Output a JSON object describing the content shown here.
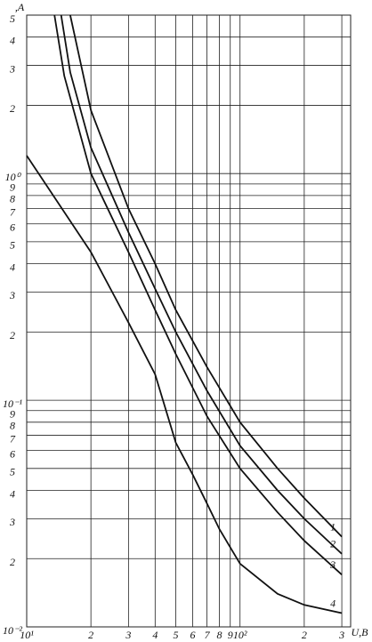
{
  "chart_data": {
    "type": "line",
    "xlabel": "U,B",
    "ylabel": ",A",
    "log_x": true,
    "log_y": true,
    "grid": true,
    "xlim": [
      10,
      330
    ],
    "ylim": [
      0.01,
      5
    ],
    "xticks": [
      {
        "value": 10,
        "label": "10¹"
      },
      {
        "value": 20,
        "label": "2"
      },
      {
        "value": 30,
        "label": "3"
      },
      {
        "value": 40,
        "label": "4"
      },
      {
        "value": 50,
        "label": "5"
      },
      {
        "value": 60,
        "label": "6"
      },
      {
        "value": 70,
        "label": "7"
      },
      {
        "value": 80,
        "label": "8"
      },
      {
        "value": 90,
        "label": "9"
      },
      {
        "value": 100,
        "label": "10²"
      },
      {
        "value": 200,
        "label": "2"
      },
      {
        "value": 300,
        "label": "3"
      }
    ],
    "yticks": [
      5,
      4,
      3,
      2,
      {
        "value": 1,
        "label": "10⁰"
      },
      {
        "value": 0.9,
        "label": "9"
      },
      {
        "value": 0.8,
        "label": "8"
      },
      {
        "value": 0.7,
        "label": "7"
      },
      {
        "value": 0.6,
        "label": "6"
      },
      {
        "value": 0.5,
        "label": "5"
      },
      {
        "value": 0.4,
        "label": "4"
      },
      {
        "value": 0.3,
        "label": "3"
      },
      {
        "value": 0.2,
        "label": "2"
      },
      {
        "value": 0.1,
        "label": "10⁻¹"
      },
      {
        "value": 0.09,
        "label": "9"
      },
      {
        "value": 0.08,
        "label": "8"
      },
      {
        "value": 0.07,
        "label": "7"
      },
      {
        "value": 0.06,
        "label": "6"
      },
      {
        "value": 0.05,
        "label": "5"
      },
      {
        "value": 0.04,
        "label": "4"
      },
      {
        "value": 0.03,
        "label": "3"
      },
      {
        "value": 0.02,
        "label": "2"
      },
      {
        "value": 0.01,
        "label": "10⁻²"
      }
    ],
    "series": [
      {
        "name": "1",
        "color": "#111111",
        "x": [
          16,
          18,
          20,
          30,
          40,
          50,
          70,
          100,
          150,
          200,
          300
        ],
        "values": [
          5,
          3,
          1.9,
          0.7,
          0.4,
          0.25,
          0.14,
          0.08,
          0.05,
          0.037,
          0.025
        ]
      },
      {
        "name": "2",
        "color": "#111111",
        "x": [
          14.5,
          16,
          20,
          30,
          40,
          50,
          70,
          100,
          150,
          200,
          300
        ],
        "values": [
          5,
          2.8,
          1.3,
          0.55,
          0.31,
          0.2,
          0.11,
          0.063,
          0.04,
          0.03,
          0.021
        ]
      },
      {
        "name": "3",
        "color": "#111111",
        "x": [
          13.5,
          15,
          20,
          30,
          40,
          50,
          70,
          100,
          150,
          200,
          300
        ],
        "values": [
          5,
          2.7,
          1.0,
          0.45,
          0.25,
          0.16,
          0.085,
          0.05,
          0.032,
          0.024,
          0.017
        ]
      },
      {
        "name": "4",
        "color": "#111111",
        "x": [
          10,
          20,
          30,
          40,
          50,
          60,
          70,
          80,
          100,
          150,
          200,
          300
        ],
        "values": [
          1.2,
          0.45,
          0.22,
          0.13,
          0.065,
          0.047,
          0.035,
          0.027,
          0.019,
          0.014,
          0.0125,
          0.0115
        ]
      }
    ]
  }
}
